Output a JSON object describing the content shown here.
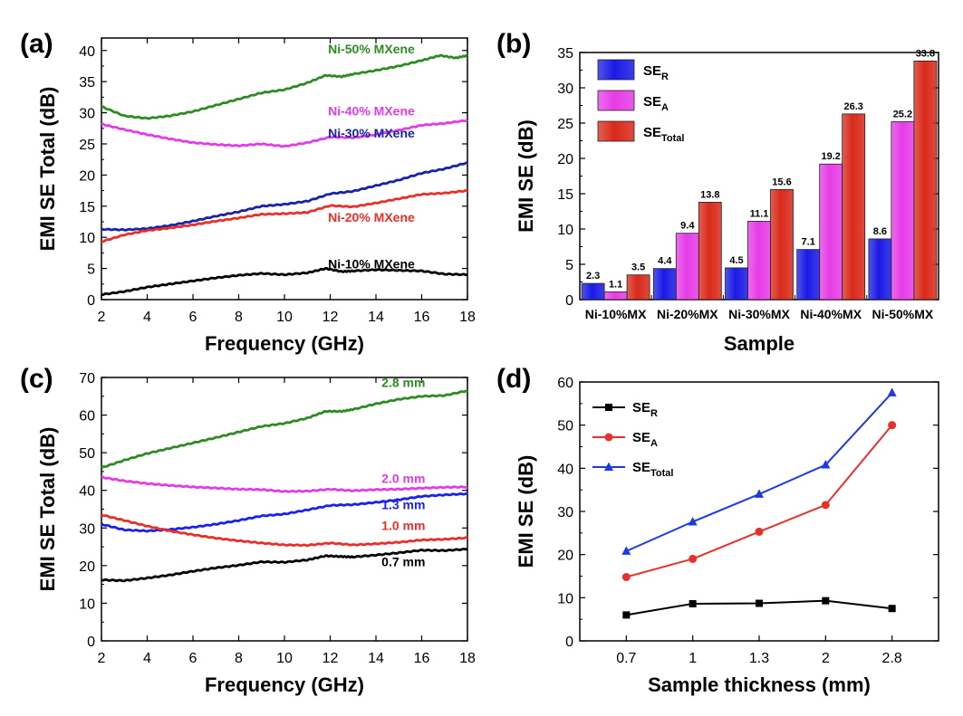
{
  "chart_data": [
    {
      "panel": "(a)",
      "type": "line",
      "xlabel": "Frequency (GHz)",
      "ylabel": "EMI SE Total (dB)",
      "xlim": [
        2,
        18
      ],
      "ylim": [
        0,
        42
      ],
      "xticks": [
        2,
        4,
        6,
        8,
        10,
        12,
        14,
        16,
        18
      ],
      "yticks": [
        0,
        5,
        10,
        15,
        20,
        25,
        30,
        35,
        40
      ],
      "series": [
        {
          "name": "Ni-50% MXene",
          "color": "#2e8b24",
          "label_at": [
            13.8,
            39.5
          ],
          "x": [
            2,
            3,
            4,
            5,
            6,
            7,
            8,
            9,
            10,
            11,
            11.8,
            12.5,
            13,
            14,
            15,
            16,
            16.8,
            17.5,
            18
          ],
          "y": [
            31.0,
            29.5,
            29.1,
            29.5,
            30.2,
            31.2,
            32.2,
            33.2,
            33.7,
            34.8,
            36.0,
            35.8,
            36.2,
            36.8,
            37.5,
            38.4,
            39.2,
            38.8,
            39.2
          ]
        },
        {
          "name": "Ni-40% MXene",
          "color": "#e23ce6",
          "label_at": [
            13.8,
            29.6
          ],
          "x": [
            2,
            3,
            4,
            5,
            6,
            7,
            8,
            9,
            10,
            11,
            12,
            13,
            14,
            15,
            16,
            17,
            18
          ],
          "y": [
            28.2,
            27.3,
            26.5,
            25.8,
            25.2,
            24.9,
            24.7,
            25.0,
            24.6,
            25.2,
            26.1,
            26.0,
            26.5,
            27.2,
            28.0,
            28.3,
            28.8
          ]
        },
        {
          "name": "Ni-30% MXene",
          "color": "#1a22a8",
          "label_at": [
            13.8,
            26.0
          ],
          "x": [
            2,
            3,
            4,
            5,
            6,
            7,
            8,
            9,
            10,
            11,
            12,
            13,
            14,
            15,
            16,
            17,
            18
          ],
          "y": [
            11.3,
            11.2,
            11.4,
            11.9,
            12.6,
            13.4,
            14.1,
            15.0,
            15.3,
            15.8,
            17.0,
            17.4,
            18.3,
            19.2,
            20.3,
            21.0,
            22.0
          ]
        },
        {
          "name": "Ni-20% MXene",
          "color": "#e8302a",
          "label_at": [
            13.8,
            12.5
          ],
          "x": [
            2,
            3,
            4,
            5,
            6,
            7,
            8,
            9,
            10,
            11,
            12,
            13,
            14,
            15,
            16,
            17,
            18
          ],
          "y": [
            9.3,
            10.4,
            11.1,
            11.5,
            12.0,
            12.6,
            13.1,
            13.7,
            13.8,
            14.0,
            15.1,
            14.9,
            15.5,
            16.2,
            16.9,
            17.1,
            17.5
          ]
        },
        {
          "name": "Ni-10% MXene",
          "color": "#000000",
          "label_at": [
            13.8,
            5.0
          ],
          "x": [
            2,
            3,
            4,
            5,
            6,
            7,
            8,
            9,
            10,
            11,
            11.8,
            12.5,
            13,
            14,
            15,
            16,
            17,
            18
          ],
          "y": [
            0.8,
            1.3,
            2.0,
            2.5,
            3.0,
            3.5,
            3.9,
            4.2,
            4.0,
            4.3,
            5.0,
            4.5,
            4.6,
            4.8,
            4.7,
            4.6,
            4.1,
            4.0
          ]
        }
      ]
    },
    {
      "panel": "(b)",
      "type": "bar",
      "xlabel": "Sample",
      "ylabel": "EMI SE (dB)",
      "ylim": [
        0,
        35
      ],
      "yticks": [
        0,
        5,
        10,
        15,
        20,
        25,
        30,
        35
      ],
      "categories": [
        "Ni-10%MX",
        "Ni-20%MX",
        "Ni-30%MX",
        "Ni-40%MX",
        "Ni-50%MX"
      ],
      "series": [
        {
          "name": "SE",
          "sub": "R",
          "color": "#1a1ae6",
          "values": [
            2.3,
            4.4,
            4.5,
            7.1,
            8.6
          ]
        },
        {
          "name": "SE",
          "sub": "A",
          "color": "#e63ce6",
          "values": [
            1.1,
            9.4,
            11.1,
            19.2,
            25.2
          ]
        },
        {
          "name": "SE",
          "sub": "Total",
          "color": "#d92a1a",
          "values": [
            3.5,
            13.8,
            15.6,
            26.3,
            33.8
          ]
        }
      ],
      "legend": "top-left"
    },
    {
      "panel": "(c)",
      "type": "line",
      "xlabel": "Frequency (GHz)",
      "ylabel": "EMI SE Total (dB)",
      "xlim": [
        2,
        18
      ],
      "ylim": [
        0,
        70
      ],
      "xticks": [
        2,
        4,
        6,
        8,
        10,
        12,
        14,
        16,
        18
      ],
      "yticks": [
        0,
        10,
        20,
        30,
        40,
        50,
        60,
        70
      ],
      "series": [
        {
          "name": "2.8 mm",
          "color": "#2e8b24",
          "label_at": [
            15.2,
            67.5
          ],
          "x": [
            2,
            3,
            4,
            5,
            6,
            7,
            8,
            9,
            10,
            11,
            11.8,
            12.5,
            13,
            14,
            15,
            16,
            17,
            18
          ],
          "y": [
            46.0,
            48.0,
            49.8,
            51.2,
            52.6,
            54.0,
            55.5,
            57.0,
            57.8,
            59.2,
            61.0,
            61.0,
            61.5,
            63.0,
            64.2,
            65.0,
            65.2,
            66.5
          ]
        },
        {
          "name": "2.0 mm",
          "color": "#e23ce6",
          "label_at": [
            15.2,
            42.0
          ],
          "x": [
            2,
            3,
            4,
            5,
            6,
            7,
            8,
            9,
            10,
            11,
            12,
            13,
            14,
            15,
            16,
            17,
            18
          ],
          "y": [
            43.5,
            42.5,
            41.8,
            41.3,
            40.9,
            40.6,
            40.3,
            40.2,
            39.7,
            39.8,
            40.3,
            39.9,
            40.2,
            40.3,
            40.6,
            40.8,
            40.9
          ]
        },
        {
          "name": "1.3 mm",
          "color": "#1a22e6",
          "label_at": [
            15.2,
            35.0
          ],
          "x": [
            2,
            3,
            4,
            5,
            6,
            7,
            8,
            9,
            10,
            11,
            12,
            13,
            14,
            15,
            16,
            17,
            18
          ],
          "y": [
            31.0,
            29.5,
            29.2,
            29.6,
            30.2,
            31.0,
            32.0,
            33.2,
            33.7,
            34.8,
            36.0,
            36.2,
            36.8,
            37.5,
            38.4,
            38.8,
            39.1
          ]
        },
        {
          "name": "1.0 mm",
          "color": "#e8302a",
          "label_at": [
            15.2,
            29.5
          ],
          "x": [
            2,
            3,
            4,
            5,
            6,
            7,
            8,
            9,
            10,
            11,
            12,
            13,
            14,
            15,
            16,
            17,
            18
          ],
          "y": [
            33.5,
            32.0,
            30.5,
            29.2,
            28.2,
            27.3,
            26.6,
            26.0,
            25.5,
            25.4,
            26.0,
            25.5,
            25.8,
            26.2,
            26.8,
            27.0,
            27.4
          ]
        },
        {
          "name": "0.7 mm",
          "color": "#000000",
          "label_at": [
            15.2,
            19.8
          ],
          "x": [
            2,
            3,
            4,
            5,
            6,
            7,
            8,
            9,
            10,
            11,
            11.8,
            12.5,
            13,
            14,
            15,
            16,
            17,
            18
          ],
          "y": [
            16.2,
            16.0,
            16.7,
            17.5,
            18.5,
            19.4,
            20.1,
            21.0,
            20.9,
            21.5,
            22.6,
            22.4,
            22.3,
            22.8,
            23.4,
            24.1,
            24.0,
            24.4
          ]
        }
      ]
    },
    {
      "panel": "(d)",
      "type": "line",
      "xlabel": "Sample thickness (mm)",
      "ylabel": "EMI SE (dB)",
      "ylim": [
        0,
        60
      ],
      "yticks": [
        0,
        10,
        20,
        30,
        40,
        50,
        60
      ],
      "categories": [
        "0.7",
        "1",
        "1.3",
        "2",
        "2.8"
      ],
      "series": [
        {
          "name": "SE",
          "sub": "R",
          "color": "#000000",
          "marker": "square",
          "values": [
            6.0,
            8.6,
            8.7,
            9.3,
            7.5
          ]
        },
        {
          "name": "SE",
          "sub": "A",
          "color": "#e8302a",
          "marker": "circle",
          "values": [
            14.8,
            19.0,
            25.3,
            31.5,
            50.0
          ]
        },
        {
          "name": "SE",
          "sub": "Total",
          "color": "#1a3ae6",
          "marker": "triangle",
          "values": [
            20.8,
            27.6,
            34.0,
            40.8,
            57.5
          ]
        }
      ],
      "legend": "top-left"
    }
  ]
}
